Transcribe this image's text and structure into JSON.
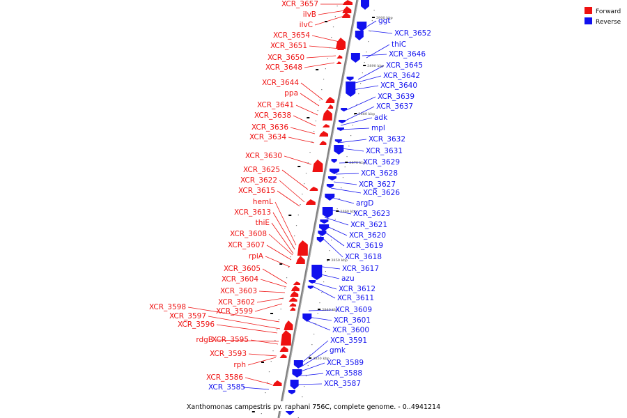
{
  "title": "Xanthomonas campestris pv. raphani 756C, complete genome. - 0..4941214",
  "colors": {
    "forward": "#ee1111",
    "reverse": "#1111ee",
    "backbone": "#8a8a8a"
  },
  "legend": [
    {
      "label": "Forward",
      "color": "#ee1111"
    },
    {
      "label": "Reverse",
      "color": "#1111ee"
    }
  ],
  "kbp_ticks": [
    "3900 kbp",
    "3890 kbp",
    "3880 kbp",
    "3870 kbp",
    "3860 kbp",
    "3850 kbp",
    "3840 kbp",
    "3830 kbp",
    "3820 kbp"
  ],
  "forward_genes": [
    "XCR_3657",
    "ilvB",
    "ilvC",
    "XCR_3654",
    "XCR_3651",
    "XCR_3650",
    "XCR_3648",
    "XCR_3644",
    "ppa",
    "XCR_3641",
    "XCR_3638",
    "XCR_3636",
    "XCR_3634",
    "XCR_3630",
    "XCR_3625",
    "XCR_3622",
    "XCR_3615",
    "hemL",
    "XCR_3613",
    "thiE",
    "XCR_3608",
    "XCR_3607",
    "rpiA",
    "XCR_3605",
    "XCR_3604",
    "XCR_3603",
    "XCR_3602",
    "XCR_3599",
    "XCR_3598",
    "XCR_3597",
    "XCR_3596",
    "rdgB",
    "XCR_3595",
    "XCR_3593",
    "rph",
    "XCR_3586"
  ],
  "reverse_genes": [
    "ggt",
    "XCR_3652",
    "thiC",
    "XCR_3646",
    "XCR_3645",
    "XCR_3642",
    "XCR_3640",
    "XCR_3639",
    "XCR_3637",
    "adk",
    "mpl",
    "XCR_3632",
    "XCR_3631",
    "XCR_3629",
    "XCR_3628",
    "XCR_3627",
    "XCR_3626",
    "argD",
    "XCR_3623",
    "XCR_3621",
    "XCR_3620",
    "XCR_3619",
    "XCR_3618",
    "XCR_3617",
    "azu",
    "XCR_3612",
    "XCR_3611",
    "XCR_3609",
    "XCR_3601",
    "XCR_3600",
    "XCR_3591",
    "gmk",
    "XCR_3589",
    "XCR_3588",
    "XCR_3587",
    "XCR_3585"
  ]
}
